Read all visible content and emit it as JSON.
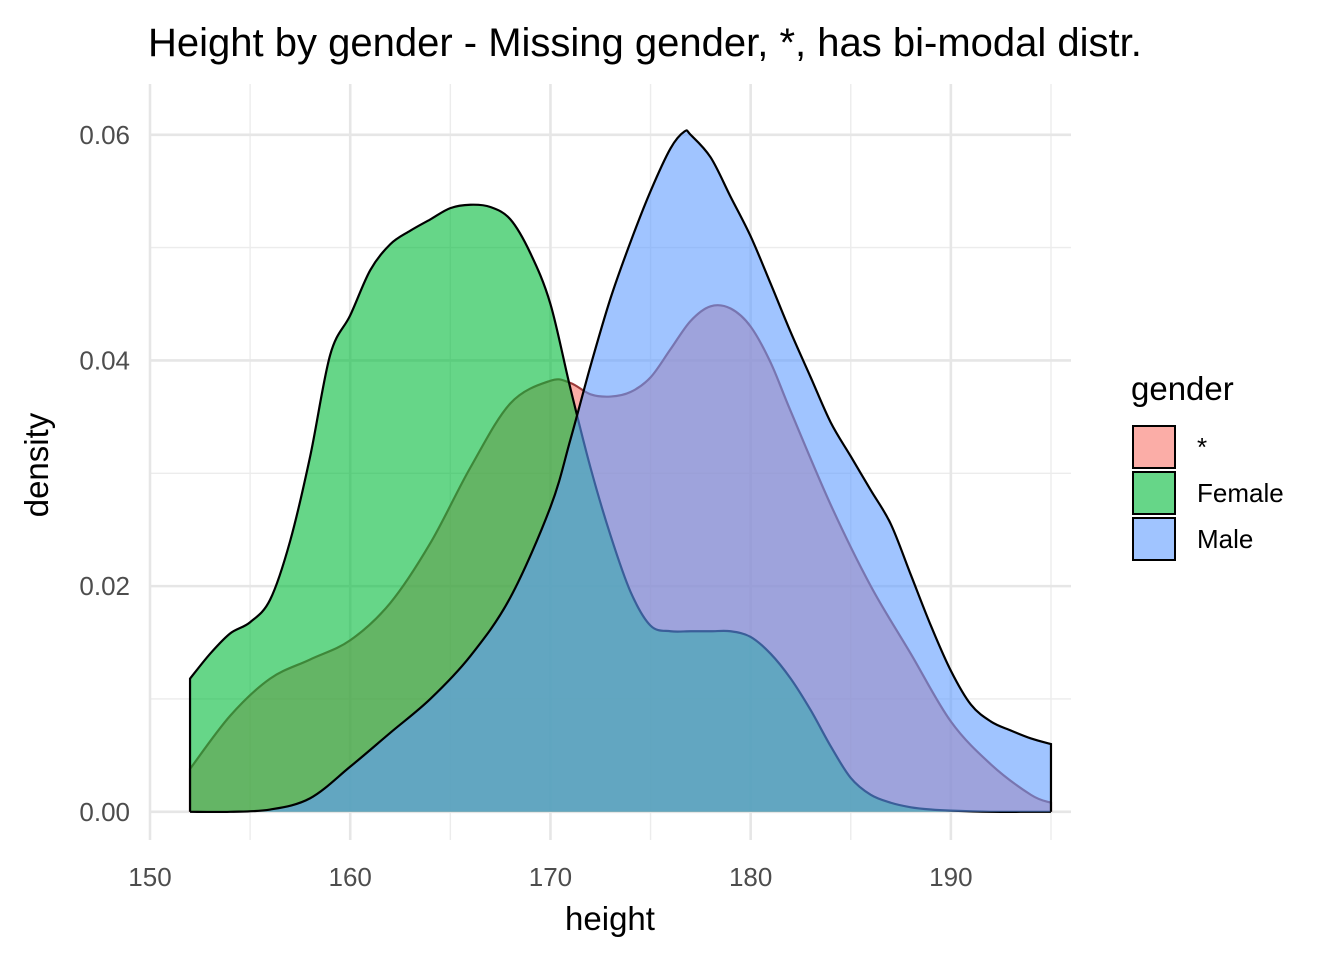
{
  "chart_data": {
    "type": "area",
    "subtype": "density",
    "title": "Height by gender - Missing gender, *, has bi-modal distr.",
    "xlabel": "height",
    "ylabel": "density",
    "xlim": [
      150,
      196
    ],
    "ylim": [
      -0.0025,
      0.0645
    ],
    "x_ticks": [
      150,
      160,
      170,
      180,
      190
    ],
    "x_tick_labels": [
      "150",
      "160",
      "170",
      "180",
      "190"
    ],
    "y_ticks": [
      0.0,
      0.02,
      0.04,
      0.06
    ],
    "y_tick_labels": [
      "0.00",
      "0.02",
      "0.04",
      "0.06"
    ],
    "grid": true,
    "legend": {
      "title": "gender",
      "position": "right"
    },
    "fill_alpha": 0.6,
    "series": [
      {
        "name": "*",
        "color": "#F8766D",
        "x": [
          152,
          154,
          156,
          158,
          160,
          162,
          164,
          166,
          168,
          170,
          171,
          172,
          173,
          174,
          175,
          176,
          177,
          178,
          179,
          180,
          181,
          182,
          184,
          186,
          188,
          190,
          192,
          194,
          195
        ],
        "values": [
          0.0038,
          0.0085,
          0.0118,
          0.0135,
          0.0152,
          0.0185,
          0.0238,
          0.0305,
          0.0362,
          0.0382,
          0.038,
          0.037,
          0.0368,
          0.0372,
          0.0385,
          0.041,
          0.0435,
          0.0448,
          0.0446,
          0.043,
          0.0398,
          0.0355,
          0.0272,
          0.02,
          0.014,
          0.008,
          0.0042,
          0.0015,
          0.0008
        ]
      },
      {
        "name": "Female",
        "color": "#00BA38",
        "x": [
          152,
          153,
          154,
          155,
          156,
          157,
          158,
          159,
          160,
          161,
          162,
          163,
          164,
          165,
          166,
          167,
          168,
          169,
          170,
          171,
          172,
          173,
          174,
          175,
          176,
          177,
          178,
          179,
          180,
          181,
          182,
          183,
          184,
          185,
          186,
          187,
          188,
          189,
          190,
          192,
          194,
          195
        ],
        "values": [
          0.0118,
          0.014,
          0.0158,
          0.0168,
          0.0188,
          0.024,
          0.0315,
          0.0405,
          0.044,
          0.048,
          0.0503,
          0.0515,
          0.0525,
          0.0535,
          0.0538,
          0.0536,
          0.0525,
          0.0495,
          0.045,
          0.0375,
          0.0305,
          0.0245,
          0.0195,
          0.0165,
          0.016,
          0.016,
          0.016,
          0.016,
          0.0155,
          0.014,
          0.0118,
          0.009,
          0.0058,
          0.003,
          0.0015,
          0.0008,
          0.0004,
          0.0002,
          0.0001,
          0.0,
          0.0,
          0.0
        ]
      },
      {
        "name": "Male",
        "color": "#619CFF",
        "x": [
          152,
          154,
          156,
          158,
          160,
          162,
          164,
          166,
          168,
          170,
          171,
          172,
          173,
          174,
          175,
          176,
          176.7,
          177,
          178,
          179,
          180,
          181,
          182,
          183,
          184,
          185,
          186,
          187,
          188,
          189,
          190,
          191,
          192,
          193,
          194,
          195
        ],
        "values": [
          0.0,
          0.0,
          0.0002,
          0.0012,
          0.004,
          0.007,
          0.01,
          0.0138,
          0.019,
          0.027,
          0.033,
          0.0395,
          0.0455,
          0.0505,
          0.055,
          0.0588,
          0.0603,
          0.06,
          0.058,
          0.0545,
          0.051,
          0.0468,
          0.0425,
          0.0385,
          0.0345,
          0.0315,
          0.0285,
          0.0255,
          0.021,
          0.0165,
          0.0125,
          0.0095,
          0.008,
          0.0072,
          0.0065,
          0.006
        ]
      }
    ]
  }
}
